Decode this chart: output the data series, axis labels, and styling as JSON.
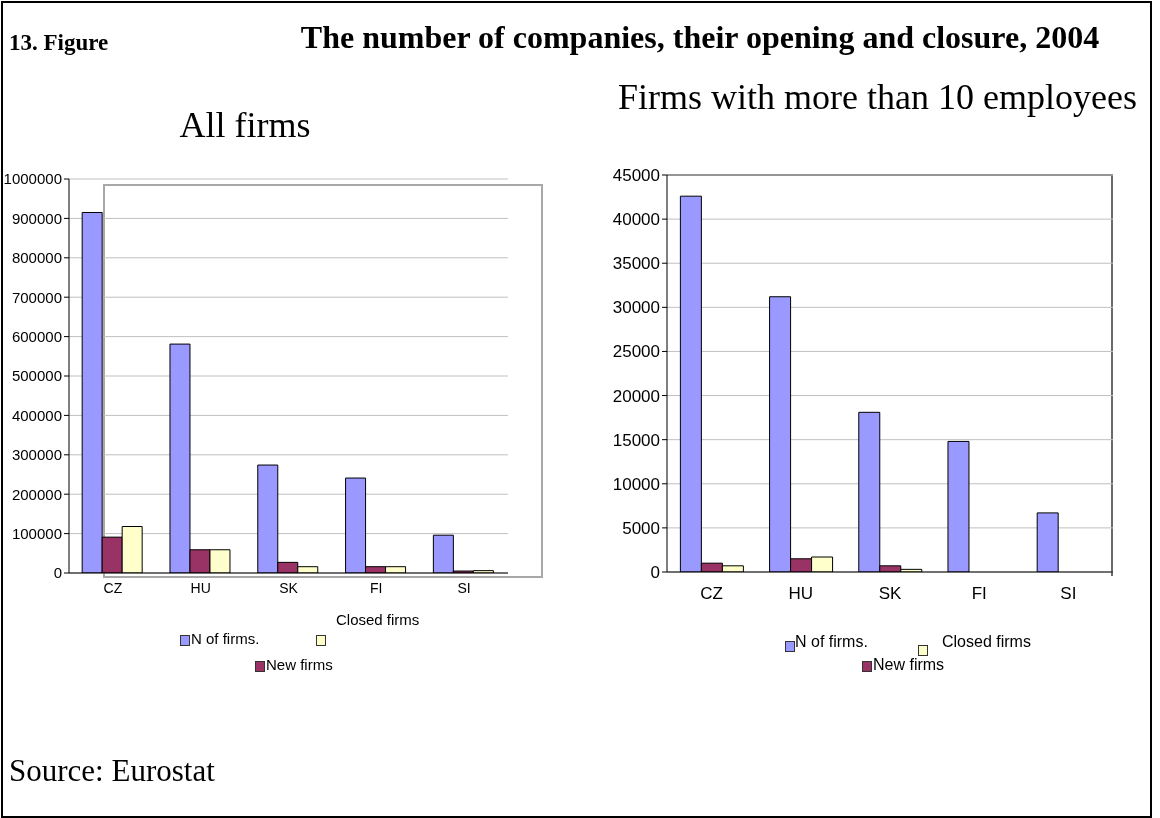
{
  "chart_data": [
    {
      "type": "bar",
      "title": "The number of companies, their opening and closure, 2004",
      "subtitle": "All firms",
      "categories": [
        "CZ",
        "HU",
        "SK",
        "FI",
        "SI"
      ],
      "series": [
        {
          "name": "N of firms.",
          "color": "#9999ff",
          "values": [
            915000,
            581000,
            274000,
            241000,
            96000
          ]
        },
        {
          "name": "New firms",
          "color": "#993366",
          "values": [
            91000,
            59000,
            27000,
            16000,
            5000
          ]
        },
        {
          "name": "Closed firms",
          "color": "#ffffcc",
          "values": [
            118000,
            59000,
            16000,
            16000,
            6000
          ]
        }
      ],
      "ylim": [
        0,
        1000000
      ],
      "yticks": [
        0,
        100000,
        200000,
        300000,
        400000,
        500000,
        600000,
        700000,
        800000,
        900000,
        1000000
      ],
      "grid": "y",
      "legend": "bottom",
      "annotations": [
        "13. Figure",
        "Source: Eurostat"
      ]
    },
    {
      "type": "bar",
      "title": "Firms with more than 10 employees",
      "categories": [
        "CZ",
        "HU",
        "SK",
        "FI",
        "SI"
      ],
      "series": [
        {
          "name": "N of firms.",
          "color": "#9999ff",
          "values": [
            42600,
            31200,
            18100,
            14800,
            6700
          ]
        },
        {
          "name": "New firms",
          "color": "#993366",
          "values": [
            1000,
            1500,
            700,
            null,
            null
          ]
        },
        {
          "name": "Closed firms",
          "color": "#ffffcc",
          "values": [
            700,
            1700,
            300,
            null,
            null
          ]
        }
      ],
      "ylim": [
        0,
        45000
      ],
      "yticks": [
        0,
        5000,
        10000,
        15000,
        20000,
        25000,
        30000,
        35000,
        40000,
        45000
      ],
      "grid": "y",
      "legend": "bottom"
    }
  ]
}
